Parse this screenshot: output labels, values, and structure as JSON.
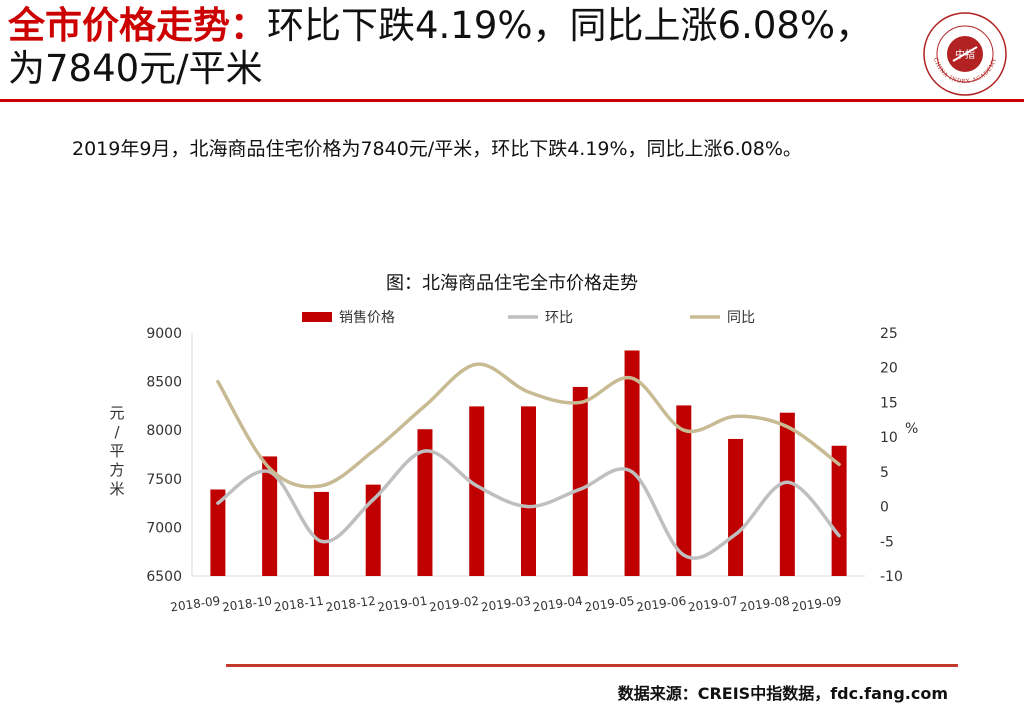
{
  "header": {
    "title_accent": "全市价格走势：",
    "title_rest": "环比下跌4.19%，同比上涨6.08%，为7840元/平米",
    "logo": {
      "icon": "china-index-academy-seal",
      "text": "CHINA INDEX ACADEMY",
      "center_text": "中指",
      "color": "#b22222"
    }
  },
  "summary": "2019年9月，北海商品住宅价格为7840元/平米，环比下跌4.19%，同比上涨6.08%。",
  "chart_data": {
    "type": "bar",
    "title": "图：北海商品住宅全市价格走势",
    "categories": [
      "2018-09",
      "2018-10",
      "2018-11",
      "2018-12",
      "2019-01",
      "2019-02",
      "2019-03",
      "2019-04",
      "2019-05",
      "2019-06",
      "2019-07",
      "2019-08",
      "2019-09"
    ],
    "series": [
      {
        "name": "销售价格",
        "kind": "bar",
        "axis": "left",
        "color": "#c00000",
        "values": [
          7390,
          7730,
          7365,
          7440,
          8010,
          8245,
          8245,
          8445,
          8820,
          8255,
          7910,
          8180,
          7840
        ]
      },
      {
        "name": "环比",
        "kind": "line",
        "axis": "right",
        "color": "#bfbfbf",
        "values": [
          0.5,
          5,
          -5,
          1,
          8,
          3,
          0,
          2.5,
          5,
          -7,
          -4,
          3.5,
          -4.19
        ]
      },
      {
        "name": "同比",
        "kind": "line",
        "axis": "right",
        "color": "#c8bb94",
        "values": [
          18,
          5.5,
          3,
          8,
          14.5,
          20.5,
          16.5,
          15,
          18.5,
          11,
          13,
          11.5,
          6.08
        ]
      }
    ],
    "ylabel_left": "元/平方米",
    "ylabel_right": "%",
    "ylim_left": [
      6500,
      9000
    ],
    "yticks_left": [
      6500,
      7000,
      7500,
      8000,
      8500,
      9000
    ],
    "ylim_right": [
      -10,
      25
    ],
    "yticks_right": [
      -10,
      -5,
      0,
      5,
      10,
      15,
      20,
      25
    ],
    "legend_position": "top",
    "grid": false
  },
  "footer": {
    "source": "数据来源：CREIS中指数据，fdc.fang.com"
  }
}
